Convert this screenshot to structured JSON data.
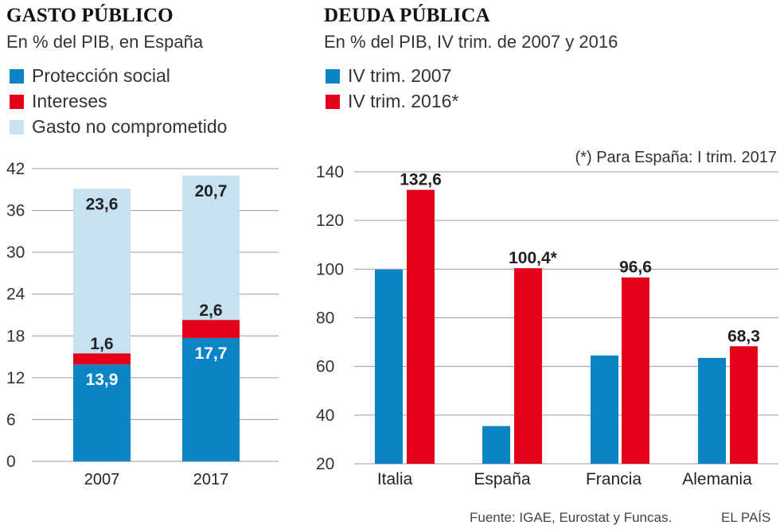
{
  "colors": {
    "blue": "#0a84c4",
    "red": "#e2001a",
    "lightblue": "#c5e1f2",
    "grid": "#999999"
  },
  "chart_data": [
    {
      "type": "bar",
      "stacked": true,
      "title": "GASTO PÚBLICO",
      "subtitle": "En % del PIB, en España",
      "categories": [
        "2007",
        "2017"
      ],
      "series": [
        {
          "name": "Protección social",
          "values": [
            13.9,
            17.7
          ],
          "labels": [
            "13,9",
            "17,7"
          ],
          "color": "#0a84c4"
        },
        {
          "name": "Intereses",
          "values": [
            1.6,
            2.6
          ],
          "labels": [
            "1,6",
            "2,6"
          ],
          "color": "#e2001a"
        },
        {
          "name": "Gasto no comprometido",
          "values": [
            23.6,
            20.7
          ],
          "labels": [
            "23,6",
            "20,7"
          ],
          "color": "#c5e1f2"
        }
      ],
      "ylim": [
        0,
        42
      ],
      "yticks": [
        "0",
        "6",
        "12",
        "18",
        "24",
        "30",
        "36",
        "42"
      ],
      "ytick_values": [
        0,
        6,
        12,
        18,
        24,
        30,
        36,
        42
      ]
    },
    {
      "type": "bar",
      "title": "DEUDA PÚBLICA",
      "subtitle": "En % del PIB, IV trim. de 2007 y 2016",
      "note": "(*) Para España: I trim. 2017",
      "categories": [
        "Italia",
        "España",
        "Francia",
        "Alemania"
      ],
      "series": [
        {
          "name": "IV trim. 2007",
          "values": [
            99.8,
            35.5,
            64.5,
            63.5
          ],
          "color": "#0a84c4"
        },
        {
          "name": "IV trim. 2016*",
          "values": [
            132.6,
            100.4,
            96.6,
            68.3
          ],
          "labels": [
            "132,6",
            "100,4*",
            "96,6",
            "68,3"
          ],
          "color": "#e2001a"
        }
      ],
      "ylim": [
        20,
        140
      ],
      "yticks": [
        "20",
        "40",
        "60",
        "80",
        "100",
        "120",
        "140"
      ],
      "ytick_values": [
        20,
        40,
        60,
        80,
        100,
        120,
        140
      ]
    }
  ],
  "footer": {
    "source": "Fuente: IGAE, Eurostat y Funcas.",
    "brand": "EL PAÍS"
  }
}
